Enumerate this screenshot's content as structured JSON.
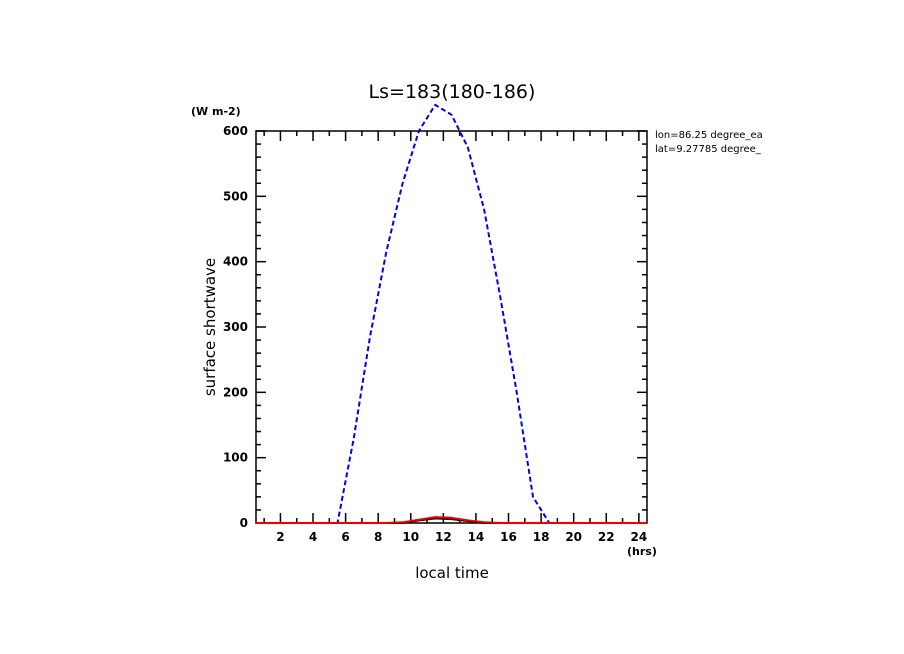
{
  "chart_data": {
    "type": "line",
    "title": "Ls=183(180-186)",
    "xlabel": "local time",
    "ylabel": "surface shortwave",
    "x_unit": "(hrs)",
    "y_unit": "(W m-2)",
    "xlim": [
      0.5,
      24.5
    ],
    "ylim": [
      0,
      600
    ],
    "x_ticks": [
      2,
      4,
      6,
      8,
      10,
      12,
      14,
      16,
      18,
      20,
      22,
      24
    ],
    "y_ticks": [
      0,
      100,
      200,
      300,
      400,
      500,
      600
    ],
    "annotations": [
      "lon=86.25 degree_ea",
      "lat=9.27785 degree_"
    ],
    "series": [
      {
        "color": "#0000ee",
        "style": "dashed",
        "x": [
          0.5,
          1.5,
          2.5,
          3.5,
          4.5,
          5.5,
          6.5,
          7.5,
          8.5,
          9.5,
          10.5,
          11.5,
          12.5,
          13.5,
          14.5,
          15.5,
          16.5,
          17.5,
          18.5,
          19.5,
          20.5,
          21.5,
          22.5,
          23.5,
          24.5
        ],
        "y": [
          0,
          0,
          0,
          0,
          0,
          0,
          130,
          285,
          415,
          520,
          600,
          640,
          625,
          575,
          480,
          345,
          200,
          40,
          0,
          0,
          0,
          0,
          0,
          0,
          0
        ]
      },
      {
        "color": "#000000",
        "style": "solid",
        "x": [
          0.5,
          8.5,
          9.5,
          10.5,
          11.5,
          12.5,
          13.5,
          14.5,
          15.5,
          24.5
        ],
        "y": [
          0,
          0,
          0,
          4,
          7,
          6,
          3,
          0,
          0,
          0
        ]
      },
      {
        "color": "#ee0000",
        "style": "solid",
        "x": [
          0.5,
          8.5,
          9.5,
          10.5,
          11.5,
          12.5,
          13.5,
          14.5,
          15.5,
          24.5
        ],
        "y": [
          0,
          0,
          1,
          5,
          9,
          8,
          4,
          1,
          0,
          0
        ]
      }
    ]
  }
}
